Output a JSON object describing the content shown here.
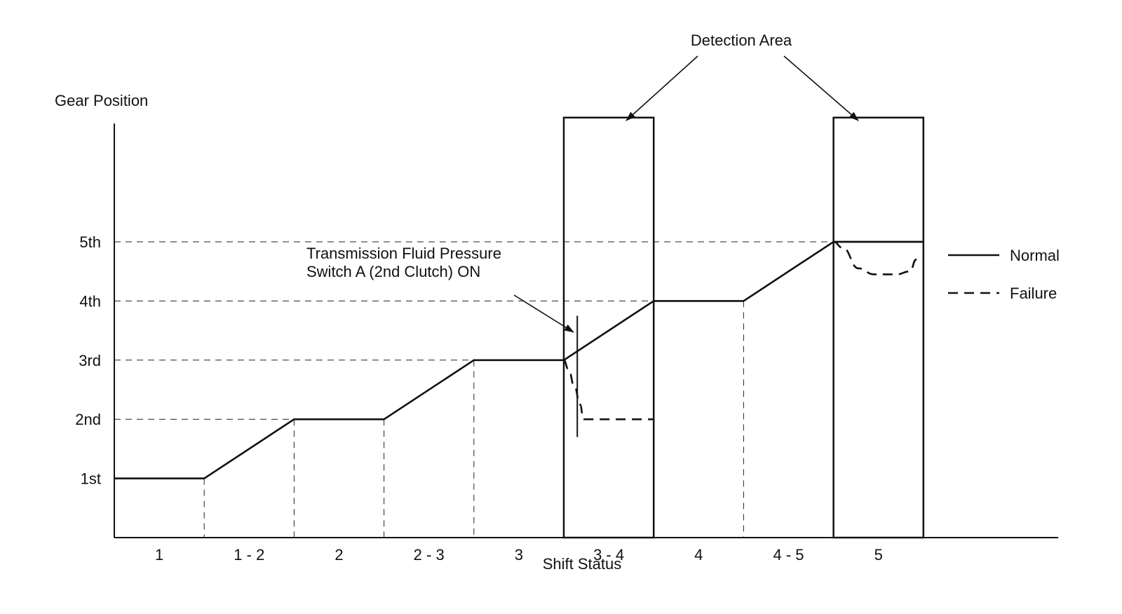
{
  "chart_data": {
    "type": "line",
    "ylabel": "Gear Position",
    "xlabel": "Shift Status",
    "categories": [
      "1",
      "1 - 2",
      "2",
      "2 - 3",
      "3",
      "3 - 4",
      "4",
      "4 - 5",
      "5"
    ],
    "y_ticks": [
      {
        "label": "1st",
        "value": 1
      },
      {
        "label": "2nd",
        "value": 2
      },
      {
        "label": "3rd",
        "value": 3
      },
      {
        "label": "4th",
        "value": 4
      },
      {
        "label": "5th",
        "value": 5
      }
    ],
    "xlim": [
      0,
      10.5
    ],
    "ylim": [
      0,
      7
    ],
    "series": [
      {
        "name": "Normal",
        "style": "solid",
        "x": [
          0,
          1,
          2,
          3,
          4,
          5,
          6,
          7,
          8,
          9
        ],
        "y": [
          1,
          1,
          2,
          2,
          3,
          3,
          4,
          4,
          5,
          5
        ]
      },
      {
        "name": "Failure",
        "style": "dashed",
        "segments": [
          {
            "x": [
              5,
              5.05,
              5.12,
              5.18,
              5.22,
              5.3,
              6
            ],
            "y": [
              3,
              2.85,
              2.55,
              2.25,
              2,
              2,
              2
            ]
          },
          {
            "x": [
              8,
              8.1,
              8.28,
              8.45,
              8.7,
              8.85,
              8.92,
              9
            ],
            "y": [
              5,
              4.9,
              4.55,
              4.45,
              4.45,
              4.5,
              4.7,
              4.72
            ]
          }
        ]
      }
    ],
    "detection_boxes": [
      [
        5,
        6
      ],
      [
        8,
        9
      ]
    ],
    "gear_marker": {
      "x": 5.15,
      "y_range": [
        1.7,
        3.75
      ]
    },
    "annotations": {
      "detection_area": "Detection Area",
      "switch_line1": "Transmission Fluid Pressure",
      "switch_line2": "Switch A (2nd Clutch) ON"
    },
    "legend": {
      "position": "right",
      "entries": [
        {
          "label": "Normal",
          "style": "solid"
        },
        {
          "label": "Failure",
          "style": "dashed"
        }
      ]
    },
    "grid": "dashed reference lines"
  }
}
